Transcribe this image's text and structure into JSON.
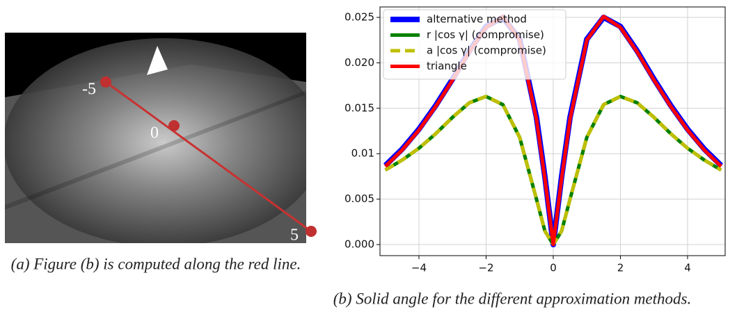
{
  "figure_a": {
    "labels": [
      "-5",
      "0",
      "5"
    ],
    "caption": "(a) Figure (b) is computed along the red line."
  },
  "figure_b": {
    "caption": "(b) Solid angle for the different approximation methods."
  },
  "chart_data": {
    "type": "line",
    "x": [
      -5,
      -4.5,
      -4,
      -3.5,
      -3,
      -2.5,
      -2,
      -1.5,
      -1,
      -0.5,
      -0.25,
      0,
      0.25,
      0.5,
      1,
      1.5,
      2,
      2.5,
      3,
      3.5,
      4,
      4.5,
      5
    ],
    "series": [
      {
        "name": "alternative method",
        "color": "#0000ff",
        "values": [
          0.0087,
          0.0105,
          0.0127,
          0.0153,
          0.0182,
          0.0213,
          0.024,
          0.025,
          0.0226,
          0.014,
          0.0075,
          0,
          0.0075,
          0.014,
          0.0226,
          0.025,
          0.024,
          0.0213,
          0.0182,
          0.0153,
          0.0127,
          0.0105,
          0.0087
        ]
      },
      {
        "name": "r |cos γ| (compromise)",
        "color": "#008000",
        "values": [
          0.0082,
          0.0093,
          0.0106,
          0.0122,
          0.014,
          0.0156,
          0.0163,
          0.0154,
          0.0118,
          0.005,
          0.0015,
          0,
          0.0015,
          0.005,
          0.0118,
          0.0154,
          0.0163,
          0.0156,
          0.014,
          0.0122,
          0.0106,
          0.0093,
          0.0082
        ]
      },
      {
        "name": "a |cos γ| (compromise)",
        "color": "#bfbf00",
        "dashed": true,
        "values": [
          0.0082,
          0.0093,
          0.0106,
          0.0122,
          0.014,
          0.0156,
          0.0163,
          0.0154,
          0.0118,
          0.005,
          0.0015,
          0,
          0.0015,
          0.005,
          0.0118,
          0.0154,
          0.0163,
          0.0156,
          0.014,
          0.0122,
          0.0106,
          0.0093,
          0.0082
        ]
      },
      {
        "name": "triangle",
        "color": "#ff0000",
        "values": [
          0.0086,
          0.0104,
          0.0126,
          0.0152,
          0.0181,
          0.0212,
          0.0239,
          0.0251,
          0.0225,
          0.0138,
          0.0073,
          0,
          0.0073,
          0.0138,
          0.0225,
          0.0251,
          0.0239,
          0.0212,
          0.0181,
          0.0152,
          0.0126,
          0.0104,
          0.0086
        ]
      }
    ],
    "xlim": [
      -5.16,
      5.12
    ],
    "ylim": [
      -0.00122,
      0.02615
    ],
    "xticks": [
      {
        "value": -4,
        "label": "−4"
      },
      {
        "value": -2,
        "label": "−2"
      },
      0,
      2,
      4
    ],
    "yticks": [
      {
        "value": 0,
        "label": "0.000"
      },
      0.005,
      0.01,
      {
        "value": 0.015,
        "label": "0.015"
      },
      {
        "value": 0.02,
        "label": "0.020"
      },
      0.025
    ],
    "grid": true,
    "legend": "upper left"
  }
}
